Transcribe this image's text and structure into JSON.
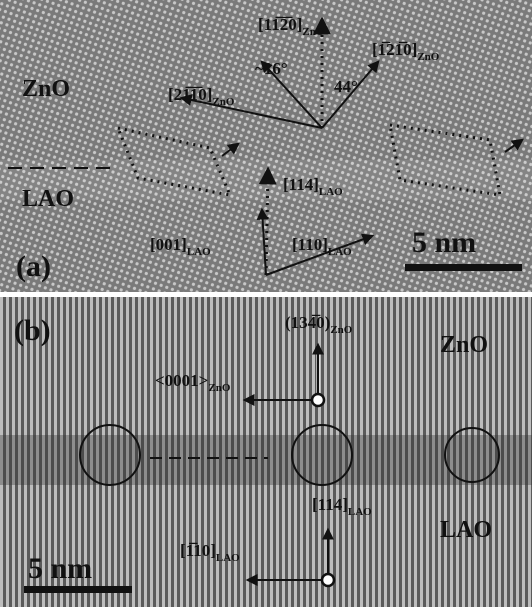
{
  "panel_a": {
    "label": "(a)",
    "materials": [
      "ZnO",
      "LAO"
    ],
    "directions": [
      {
        "index": "[11̅2̅0]",
        "sub": "ZnO"
      },
      {
        "index": "[21̅1̅0]",
        "sub": "ZnO"
      },
      {
        "index": "[1̅21̅0]",
        "sub": "ZnO"
      },
      {
        "index": "[114]",
        "sub": "LAO"
      },
      {
        "index": "[001]",
        "sub": "LAO"
      },
      {
        "index": "[110]",
        "sub": "LAO"
      }
    ],
    "angles": [
      "~16°",
      "44°"
    ],
    "scale_bar": "5 nm"
  },
  "panel_b": {
    "label": "(b)",
    "materials": [
      "ZnO",
      "LAO"
    ],
    "directions": [
      {
        "index": "(134̅0)",
        "sub": "ZnO"
      },
      {
        "index": "<0001>",
        "sub": "ZnO"
      },
      {
        "index": "[114]",
        "sub": "LAO"
      },
      {
        "index": "[1̅10]",
        "sub": "LAO"
      }
    ],
    "scale_bar": "5 nm"
  }
}
